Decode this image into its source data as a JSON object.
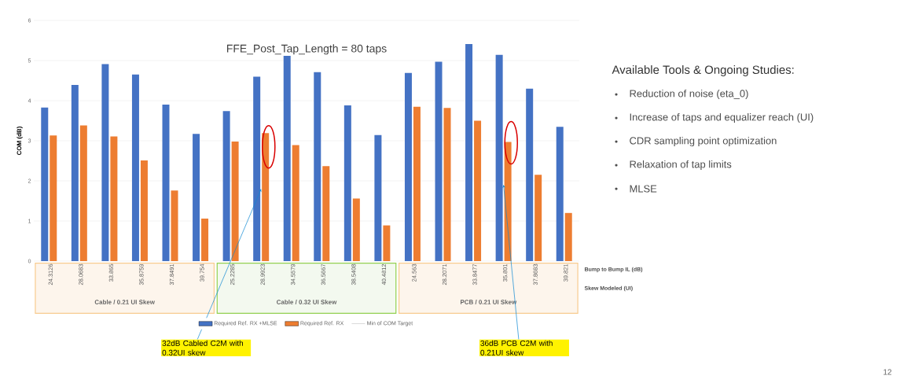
{
  "chart_data": {
    "type": "bar",
    "title": "FFE_Post_Tap_Length = 80 taps",
    "ylabel": "COM (dB)",
    "categories": [
      "24.3126",
      "28.0683",
      "33.865",
      "35.8759",
      "37.8491",
      "39.754",
      "25.2285",
      "28.9923",
      "34.5579",
      "36.5667",
      "38.5408",
      "40.4812",
      "24.563",
      "28.2071",
      "33.8477",
      "35.801",
      "37.8683",
      "39.821"
    ],
    "series": [
      {
        "name": "Required Ref. RX +MLSE",
        "color": "#4472c4",
        "values": [
          3.83,
          4.39,
          4.91,
          4.65,
          3.9,
          3.17,
          3.74,
          4.6,
          5.12,
          4.71,
          3.88,
          3.14,
          4.69,
          4.97,
          5.41,
          5.14,
          4.3,
          3.35
        ]
      },
      {
        "name": "Required Ref. RX",
        "color": "#ed7d31",
        "values": [
          3.13,
          3.38,
          3.11,
          2.51,
          1.76,
          1.06,
          2.98,
          3.19,
          2.89,
          2.37,
          1.56,
          0.89,
          3.85,
          3.82,
          3.5,
          2.97,
          2.15,
          1.2
        ]
      },
      {
        "name": "Min of COM Target",
        "color": "#a5a5a5",
        "type": "line",
        "values": [
          null,
          null,
          null,
          null,
          null,
          null,
          null,
          null,
          null,
          null,
          null,
          null,
          null,
          null,
          null,
          null,
          null,
          null
        ]
      }
    ],
    "ylim": [
      0,
      6
    ],
    "yticks": [
      0,
      1,
      2,
      3,
      4,
      5,
      6
    ],
    "grid": "y",
    "legend": "bottom",
    "annotations": [
      "Cable / 0.21 UI Skew",
      "Cable / 0.32 UI Skew",
      "PCB / 0.21 UI Skew",
      "Bump to Bump IL (dB)",
      "Skew Modeled (UI)",
      {
        "text": "32dB Cabled C2M with 0.32UI skew",
        "x": "28.9923",
        "y": 1.8
      },
      {
        "text": "36dB PCB C2M with 0.21UI skew",
        "x": "35.801",
        "y": 1.9
      },
      "Available Tools & Ongoing Studies:",
      "Reduction of noise (eta_0)",
      "Increase of taps and equalizer reach (UI)",
      "CDR sampling point optimization",
      "Relaxation of tap limits",
      "MLSE",
      "12"
    ]
  }
}
